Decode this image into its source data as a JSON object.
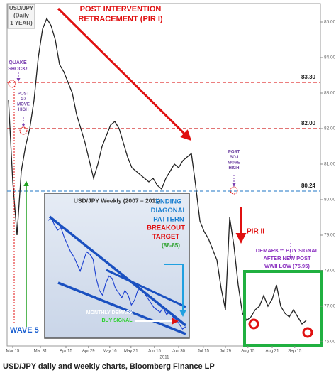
{
  "chart_data": [
    {
      "type": "line",
      "title": [
        "USD/JPY",
        "(Daily",
        "1 YEAR)"
      ],
      "color": "#222222",
      "values": [
        82.8,
        80.5,
        79.0,
        80.8,
        81.5,
        82.0,
        82.8,
        84.0,
        84.8,
        85.1,
        84.9,
        84.5,
        83.8,
        83.6,
        83.3,
        83.0,
        82.4,
        82.0,
        81.6,
        81.1,
        80.6,
        81.0,
        81.5,
        81.8,
        82.1,
        82.2,
        82.0,
        81.6,
        81.2,
        80.9,
        80.8,
        80.7,
        80.6,
        80.5,
        80.6,
        80.4,
        80.3,
        80.6,
        80.8,
        81.0,
        80.9,
        81.1,
        81.2,
        81.3,
        80.4,
        79.4,
        79.1,
        78.9,
        78.6,
        78.3,
        77.5,
        76.9,
        79.5,
        78.7,
        77.6,
        76.8,
        76.6,
        76.7,
        76.9,
        77.0,
        77.3,
        77.0,
        77.2,
        77.6,
        77.0,
        76.8,
        76.7,
        76.9,
        76.7,
        76.5,
        76.6
      ],
      "xlim": [
        0,
        71
      ],
      "xticks": [
        {
          "value": 1,
          "label": "Mar 15"
        },
        {
          "value": 7.5,
          "label": "Mar 31"
        },
        {
          "value": 13.5,
          "label": "Apr 15"
        },
        {
          "value": 18.8,
          "label": "Apr 29"
        },
        {
          "value": 23.8,
          "label": "May 16"
        },
        {
          "value": 28.8,
          "label": "May 31"
        },
        {
          "value": 34.3,
          "label": "Jun 15"
        },
        {
          "value": 40,
          "label": "Jun 30"
        },
        {
          "value": 45.8,
          "label": "Jul 15"
        },
        {
          "value": 51,
          "label": "Jul 29"
        },
        {
          "value": 56.3,
          "label": "Aug 15"
        },
        {
          "value": 62,
          "label": "Aug 31"
        },
        {
          "value": 67.3,
          "label": "Sep 15"
        }
      ],
      "x_axis_year": "2011",
      "ylim": [
        75.9,
        85.5
      ],
      "yticks": [
        {
          "value": 76,
          "label": "76.00"
        },
        {
          "value": 77,
          "label": "77.00"
        },
        {
          "value": 78,
          "label": "78.00"
        },
        {
          "value": 79,
          "label": "79.00"
        },
        {
          "value": 80,
          "label": "80.00"
        },
        {
          "value": 81,
          "label": "81.00"
        },
        {
          "value": 82,
          "label": "82.00"
        },
        {
          "value": 83,
          "label": "83.00"
        },
        {
          "value": 84,
          "label": "84.00"
        },
        {
          "value": 85,
          "label": "85.00"
        }
      ],
      "reference_lines": [
        {
          "value": 83.3,
          "label": "83.30",
          "color": "#e03030"
        },
        {
          "value": 82.0,
          "label": "82.00",
          "color": "#d02020"
        },
        {
          "value": 80.24,
          "label": "80.24",
          "color": "#4a90d0"
        }
      ],
      "annotations": [
        {
          "text": [
            "POST INTERVENTION",
            "RETRACEMENT (PIR I)"
          ],
          "color": "#e01010"
        },
        {
          "text": [
            "QUAKE",
            "SHOCK!"
          ],
          "color": "#7a3fb0"
        },
        {
          "text": [
            "POST",
            "G7",
            "MOVE",
            "HIGH"
          ],
          "color": "#6b3fa0"
        },
        {
          "text": [
            "POST",
            "BOJ",
            "MOVE",
            "HIGH"
          ],
          "color": "#6b3fa0"
        },
        {
          "text": [
            "PIR II"
          ],
          "color": "#e01010"
        },
        {
          "text": [
            "DEMARK™ BUY SIGNAL",
            "AFTER NEW POST",
            "WWII LOW (75.95)"
          ],
          "color": "#8a2fc0"
        },
        {
          "text": [
            "WAVE 5"
          ],
          "color": "#1a5fd0"
        }
      ]
    },
    {
      "type": "line",
      "title": "USD/JPY Weekly (2007 – 2011)",
      "color": "#1a3fd0",
      "values": [
        121,
        122,
        119,
        117,
        118,
        114,
        111,
        108,
        106,
        103,
        100,
        104,
        108,
        107,
        105,
        97,
        92,
        90,
        95,
        98,
        97,
        93,
        91,
        89,
        92,
        90,
        86,
        88,
        92,
        93,
        91,
        89,
        87,
        85,
        84,
        83,
        85,
        82,
        83,
        81,
        80,
        78,
        76,
        77
      ],
      "ylim": [
        74,
        124
      ],
      "annotations": [
        {
          "text": [
            "ENDING",
            "DIAGONAL",
            "PATTERN"
          ],
          "color": "#1a7fd0"
        },
        {
          "text": [
            "BREAKOUT",
            "TARGET"
          ],
          "color": "#e01010"
        },
        {
          "text": [
            "(88-85)"
          ],
          "color": "#2aa02a"
        },
        {
          "text": [
            "MONTHLY DEMARK"
          ],
          "color": "#ffffff"
        },
        {
          "text": [
            "BUY SIGNAL"
          ],
          "color": "#2ad02a"
        }
      ]
    }
  ],
  "caption": "USD/JPY daily and weekly charts, Bloomberg Finance LP"
}
